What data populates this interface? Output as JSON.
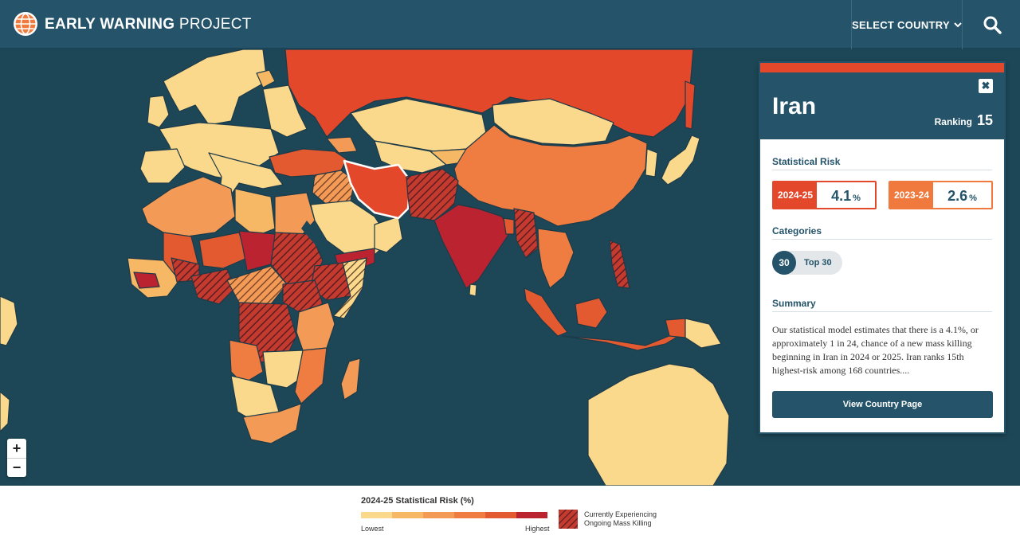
{
  "header": {
    "brand_bold": "EARLY WARNING",
    "brand_light": "PROJECT",
    "select_country_label": "SELECT COUNTRY",
    "icons": [
      "globe-logo-icon",
      "chevron-down-icon",
      "search-icon"
    ]
  },
  "map": {
    "selected_country": "Iran",
    "zoom_in_label": "+",
    "zoom_out_label": "−"
  },
  "panel": {
    "country": "Iran",
    "ranking_label": "Ranking",
    "ranking_value": "15",
    "statistical_risk_label": "Statistical Risk",
    "risk_current": {
      "year": "2024-25",
      "value": "4.1",
      "unit": "%",
      "color": "#e4482b"
    },
    "risk_previous": {
      "year": "2023-24",
      "value": "2.6",
      "unit": "%",
      "color": "#f07a3e"
    },
    "categories_label": "Categories",
    "category_badge": "30",
    "category_text": "Top 30",
    "summary_label": "Summary",
    "summary_text": "Our statistical model estimates that there is a 4.1%, or approximately 1 in 24, chance of a new mass killing beginning in Iran in 2024 or 2025. Iran ranks 15th highest-risk among 168 countries....",
    "view_button_label": "View Country Page"
  },
  "legend": {
    "title": "2024-25 Statistical Risk (%)",
    "low_label": "Lowest",
    "high_label": "Highest",
    "scale_colors": [
      "#fbd98c",
      "#f7b865",
      "#f39b56",
      "#ef7d42",
      "#e45a30",
      "#bb2330"
    ],
    "hatch_label_line1": "Currently Experiencing",
    "hatch_label_line2": "Ongoing Mass Killing"
  }
}
